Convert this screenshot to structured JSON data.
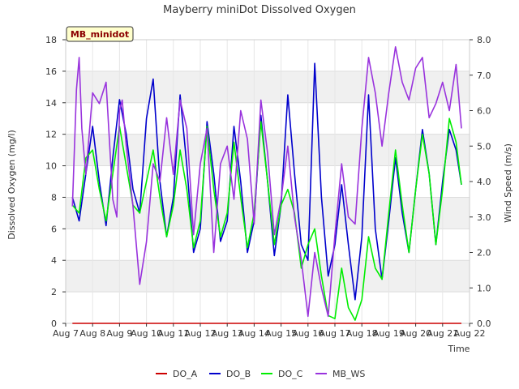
{
  "chart_data": {
    "type": "line",
    "title": "Mayberry miniDot Dissolved Oxygen",
    "xlabel": "Time",
    "ylabel": "Dissolved Oxygen (mg/l)",
    "y2label": "Wind Speed (m/s)",
    "badge": "MB_minidot",
    "xlim": [
      0,
      15
    ],
    "ylim": [
      0,
      18
    ],
    "y2lim": [
      0,
      8
    ],
    "x_ticks": [
      {
        "x": 0,
        "label": "Aug 7"
      },
      {
        "x": 1,
        "label": "Aug 8"
      },
      {
        "x": 2,
        "label": "Aug 9"
      },
      {
        "x": 3,
        "label": "Aug 10"
      },
      {
        "x": 4,
        "label": "Aug 11"
      },
      {
        "x": 5,
        "label": "Aug 12"
      },
      {
        "x": 6,
        "label": "Aug 13"
      },
      {
        "x": 7,
        "label": "Aug 14"
      },
      {
        "x": 8,
        "label": "Aug 15"
      },
      {
        "x": 9,
        "label": "Aug 16"
      },
      {
        "x": 10,
        "label": "Aug 17"
      },
      {
        "x": 11,
        "label": "Aug 18"
      },
      {
        "x": 12,
        "label": "Aug 19"
      },
      {
        "x": 13,
        "label": "Aug 20"
      },
      {
        "x": 14,
        "label": "Aug 21"
      },
      {
        "x": 15,
        "label": "Aug 22"
      }
    ],
    "y_ticks": [
      0,
      2,
      4,
      6,
      8,
      10,
      12,
      14,
      16,
      18
    ],
    "y2_ticks": [
      "0.0",
      "1.0",
      "2.0",
      "3.0",
      "4.0",
      "5.0",
      "6.0",
      "7.0",
      "8.0"
    ],
    "grid": true,
    "banded_background": true,
    "legend_position": "bottom",
    "series": [
      {
        "name": "DO_A",
        "axis": "left",
        "color": "#cc0000",
        "x": [
          0.25,
          14.7
        ],
        "y": [
          0.0,
          0.0
        ]
      },
      {
        "name": "DO_B",
        "axis": "left",
        "color": "#0000cc",
        "x": [
          0.25,
          0.5,
          0.75,
          1.0,
          1.25,
          1.5,
          1.75,
          2.0,
          2.25,
          2.5,
          2.75,
          3.0,
          3.25,
          3.5,
          3.75,
          4.0,
          4.25,
          4.5,
          4.75,
          5.0,
          5.25,
          5.5,
          5.75,
          6.0,
          6.25,
          6.5,
          6.75,
          7.0,
          7.25,
          7.5,
          7.75,
          8.0,
          8.25,
          8.5,
          8.75,
          9.0,
          9.25,
          9.5,
          9.75,
          10.0,
          10.25,
          10.5,
          10.75,
          11.0,
          11.25,
          11.5,
          11.75,
          12.0,
          12.25,
          12.5,
          12.75,
          13.0,
          13.25,
          13.5,
          13.75,
          14.0,
          14.25,
          14.5,
          14.7
        ],
        "y": [
          8.0,
          6.5,
          9.5,
          12.5,
          9.0,
          6.2,
          10.5,
          14.2,
          12.0,
          8.5,
          7.0,
          13.0,
          15.5,
          9.0,
          5.5,
          8.0,
          14.5,
          10.0,
          4.5,
          6.0,
          12.8,
          9.5,
          5.2,
          6.5,
          12.5,
          9.0,
          4.5,
          6.5,
          13.2,
          9.0,
          4.3,
          7.5,
          14.5,
          9.5,
          5.0,
          4.0,
          16.5,
          8.0,
          3.0,
          5.0,
          8.8,
          5.0,
          1.5,
          5.5,
          14.5,
          6.0,
          2.8,
          6.5,
          10.5,
          7.0,
          4.5,
          8.5,
          12.3,
          9.5,
          5.0,
          9.0,
          12.3,
          11.0,
          8.8
        ]
      },
      {
        "name": "DO_C",
        "axis": "left",
        "color": "#00ee00",
        "x": [
          0.25,
          0.5,
          0.75,
          1.0,
          1.25,
          1.5,
          1.75,
          2.0,
          2.25,
          2.5,
          2.75,
          3.0,
          3.25,
          3.5,
          3.75,
          4.0,
          4.25,
          4.5,
          4.75,
          5.0,
          5.25,
          5.5,
          5.75,
          6.0,
          6.25,
          6.5,
          6.75,
          7.0,
          7.25,
          7.5,
          7.75,
          8.0,
          8.25,
          8.5,
          8.75,
          9.0,
          9.25,
          9.5,
          9.75,
          10.0,
          10.25,
          10.5,
          10.75,
          11.0,
          11.25,
          11.5,
          11.75,
          12.0,
          12.25,
          12.5,
          12.75,
          13.0,
          13.25,
          13.5,
          13.75,
          14.0,
          14.25,
          14.5,
          14.7
        ],
        "y": [
          7.5,
          7.0,
          10.5,
          11.0,
          8.5,
          6.5,
          9.5,
          12.5,
          10.0,
          7.5,
          7.0,
          9.0,
          11.0,
          8.0,
          5.5,
          7.5,
          11.0,
          8.5,
          4.8,
          6.5,
          12.5,
          8.5,
          5.5,
          7.0,
          11.5,
          8.0,
          4.8,
          7.0,
          12.8,
          9.0,
          5.0,
          7.5,
          8.5,
          7.0,
          3.5,
          5.0,
          6.0,
          3.0,
          0.5,
          0.3,
          3.5,
          1.0,
          0.2,
          1.5,
          5.5,
          3.5,
          2.8,
          7.0,
          11.0,
          7.5,
          4.5,
          8.5,
          12.0,
          9.5,
          5.0,
          8.5,
          13.0,
          11.5,
          8.8
        ]
      },
      {
        "name": "MB_WS",
        "axis": "right",
        "color": "#9933dd",
        "x": [
          0.25,
          0.4,
          0.5,
          0.6,
          0.75,
          1.0,
          1.25,
          1.5,
          1.75,
          1.9,
          2.0,
          2.1,
          2.25,
          2.5,
          2.75,
          3.0,
          3.25,
          3.5,
          3.75,
          4.0,
          4.25,
          4.5,
          4.75,
          5.0,
          5.25,
          5.5,
          5.75,
          6.0,
          6.25,
          6.5,
          6.75,
          7.0,
          7.25,
          7.5,
          7.75,
          8.0,
          8.25,
          8.5,
          8.75,
          9.0,
          9.25,
          9.5,
          9.75,
          10.0,
          10.25,
          10.5,
          10.75,
          11.0,
          11.25,
          11.5,
          11.75,
          12.0,
          12.25,
          12.5,
          12.75,
          13.0,
          13.25,
          13.5,
          13.75,
          14.0,
          14.25,
          14.5,
          14.7
        ],
        "y": [
          3.3,
          6.6,
          7.5,
          5.5,
          4.2,
          6.5,
          6.2,
          6.8,
          3.5,
          3.0,
          6.0,
          6.3,
          5.0,
          3.3,
          1.1,
          2.3,
          4.5,
          4.0,
          5.8,
          4.2,
          6.3,
          5.5,
          2.5,
          4.5,
          5.5,
          2.0,
          4.5,
          5.0,
          3.5,
          6.0,
          5.2,
          2.8,
          6.3,
          4.8,
          2.5,
          3.5,
          5.0,
          3.0,
          1.8,
          0.2,
          2.0,
          1.0,
          0.2,
          2.5,
          4.5,
          3.0,
          2.8,
          5.5,
          7.5,
          6.5,
          5.0,
          6.5,
          7.8,
          6.8,
          6.3,
          7.2,
          7.5,
          5.8,
          6.2,
          6.8,
          6.0,
          7.3,
          5.5
        ]
      }
    ]
  }
}
